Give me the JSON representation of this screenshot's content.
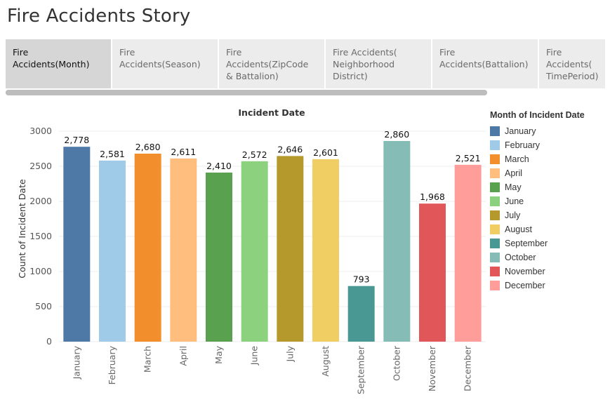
{
  "story": {
    "title": "Fire Accidents Story"
  },
  "tabs": [
    {
      "label": "Fire Accidents(Month)",
      "active": true
    },
    {
      "label": "Fire Accidents(Season)",
      "active": false
    },
    {
      "label": "Fire Accidents(ZipCode & Battalion)",
      "active": false
    },
    {
      "label": "Fire Accidents( Neighborhood District)",
      "active": false
    },
    {
      "label": "Fire Accidents(Battalion)",
      "active": false
    },
    {
      "label": "Fire Accidents( TimePeriod)",
      "active": false
    }
  ],
  "chart_data": {
    "type": "bar",
    "title": "Incident Date",
    "ylabel": "Count of Incident Date",
    "xlabel": "",
    "ylim": [
      0,
      3000
    ],
    "yticks": [
      0,
      500,
      1000,
      1500,
      2000,
      2500,
      3000
    ],
    "categories": [
      "January",
      "February",
      "March",
      "April",
      "May",
      "June",
      "July",
      "August",
      "September",
      "October",
      "November",
      "December"
    ],
    "values": [
      2778,
      2581,
      2680,
      2611,
      2410,
      2572,
      2646,
      2601,
      793,
      2860,
      1968,
      2521
    ],
    "value_labels": [
      "2,778",
      "2,581",
      "2,680",
      "2,611",
      "2,410",
      "2,572",
      "2,646",
      "2,601",
      "793",
      "2,860",
      "1,968",
      "2,521"
    ],
    "colors": [
      "#4e79a7",
      "#a0cbe8",
      "#f28e2b",
      "#ffbe7d",
      "#59a14f",
      "#8cd17d",
      "#b6992d",
      "#f1ce63",
      "#499894",
      "#86bcb6",
      "#e15759",
      "#ff9d9a"
    ],
    "grid": true,
    "legend": {
      "title": "Month of Incident Date",
      "placement": "right",
      "entries": [
        "January",
        "February",
        "March",
        "April",
        "May",
        "June",
        "July",
        "August",
        "September",
        "October",
        "November",
        "December"
      ]
    }
  }
}
